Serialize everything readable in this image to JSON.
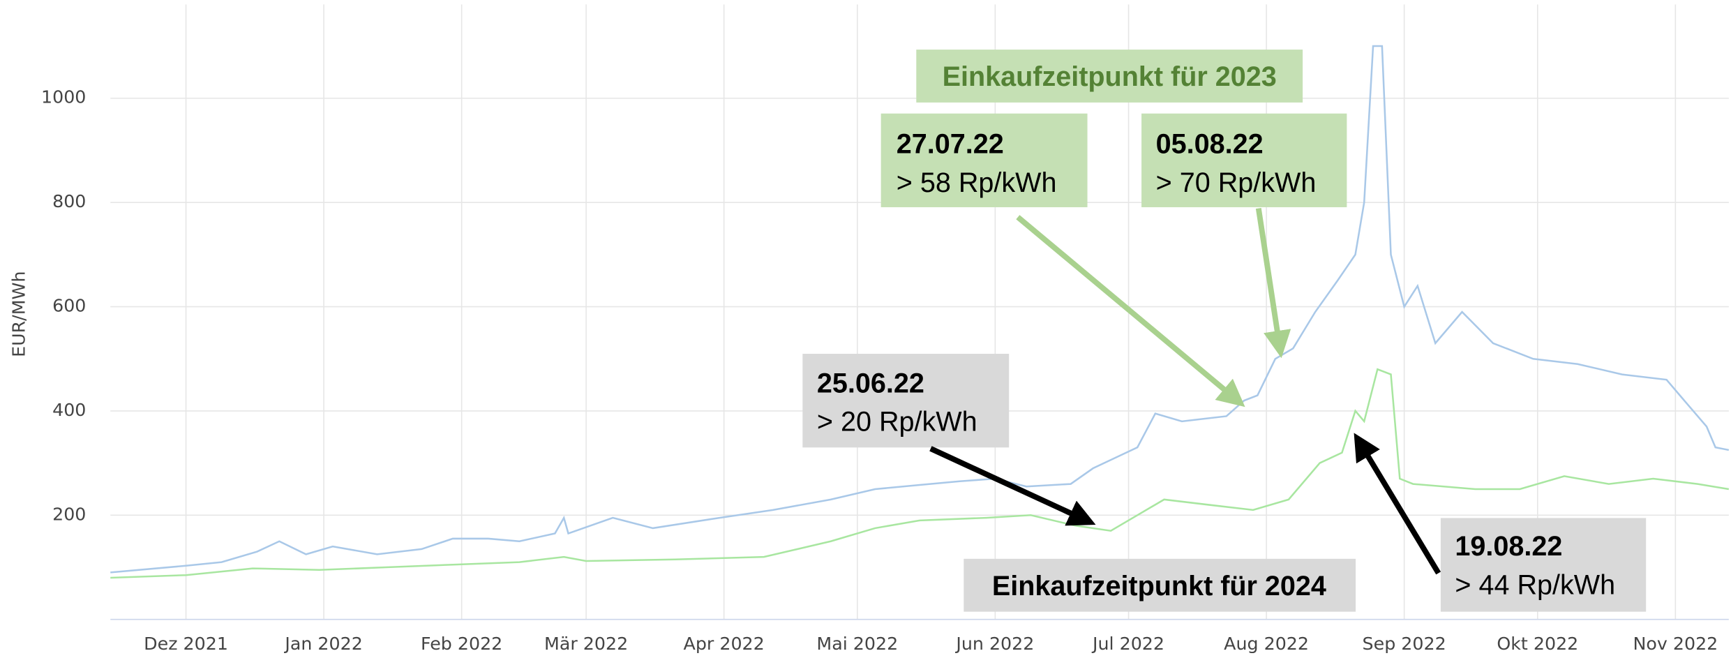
{
  "chart_data": {
    "type": "line",
    "y_label": "EUR/MWh",
    "xlim": [
      -17,
      347
    ],
    "ylim": [
      0,
      1180
    ],
    "xticks": [
      {
        "value": 0,
        "label": "Dez 2021"
      },
      {
        "value": 31,
        "label": "Jan 2022"
      },
      {
        "value": 62,
        "label": "Feb 2022"
      },
      {
        "value": 90,
        "label": "Mär 2022"
      },
      {
        "value": 121,
        "label": "Apr 2022"
      },
      {
        "value": 151,
        "label": "Mai 2022"
      },
      {
        "value": 182,
        "label": "Jun 2022"
      },
      {
        "value": 212,
        "label": "Jul 2022"
      },
      {
        "value": 243,
        "label": "Aug 2022"
      },
      {
        "value": 274,
        "label": "Sep 2022"
      },
      {
        "value": 304,
        "label": "Okt 2022"
      },
      {
        "value": 335,
        "label": "Nov 2022"
      }
    ],
    "yticks": [
      200,
      400,
      600,
      800,
      1000
    ],
    "grid": true,
    "series": [
      {
        "color": "#a9c8e8",
        "x": [
          -17,
          0,
          8,
          16,
          21,
          27,
          33,
          43,
          53,
          60,
          68,
          75,
          83,
          85,
          86,
          96,
          105,
          120,
          132,
          145,
          155,
          165,
          174,
          182,
          189,
          199,
          204,
          209,
          214,
          218,
          224,
          229,
          234,
          238,
          241,
          245,
          249,
          254,
          259,
          263,
          265,
          267,
          269,
          271,
          274,
          277,
          281,
          287,
          294,
          303,
          313,
          323,
          333,
          337,
          342,
          344,
          347
        ],
        "values": [
          90,
          103,
          110,
          130,
          150,
          125,
          140,
          125,
          135,
          155,
          155,
          150,
          165,
          195,
          165,
          195,
          175,
          195,
          210,
          230,
          250,
          258,
          265,
          270,
          255,
          260,
          290,
          310,
          330,
          395,
          380,
          385,
          390,
          420,
          430,
          500,
          520,
          590,
          650,
          700,
          800,
          1100,
          1100,
          700,
          600,
          640,
          530,
          590,
          530,
          500,
          490,
          470,
          460,
          420,
          370,
          330,
          325
        ]
      },
      {
        "color": "#a8e6a0",
        "x": [
          -17,
          0,
          15,
          30,
          45,
          60,
          75,
          85,
          90,
          110,
          130,
          145,
          155,
          165,
          180,
          190,
          200,
          208,
          214,
          220,
          230,
          240,
          248,
          255,
          260,
          263,
          265,
          268,
          271,
          273,
          276,
          290,
          300,
          310,
          320,
          330,
          340,
          347
        ],
        "values": [
          80,
          85,
          98,
          95,
          100,
          105,
          110,
          120,
          112,
          115,
          120,
          150,
          175,
          190,
          195,
          200,
          180,
          170,
          200,
          230,
          220,
          210,
          230,
          300,
          320,
          400,
          380,
          480,
          470,
          270,
          260,
          250,
          250,
          275,
          260,
          270,
          260,
          250
        ]
      }
    ],
    "labels": [
      "Einkaufzeitpunkt für 2023",
      "Einkaufzeitpunkt für 2024"
    ],
    "annotations": [
      {
        "date": "27.07.22",
        "text": "> 58 Rp/kWh"
      },
      {
        "date": "05.08.22",
        "text": "> 70 Rp/kWh"
      },
      {
        "date": "25.06.22",
        "text": "> 20 Rp/kWh"
      },
      {
        "date": "19.08.22",
        "text": "> 44 Rp/kWh"
      }
    ]
  }
}
